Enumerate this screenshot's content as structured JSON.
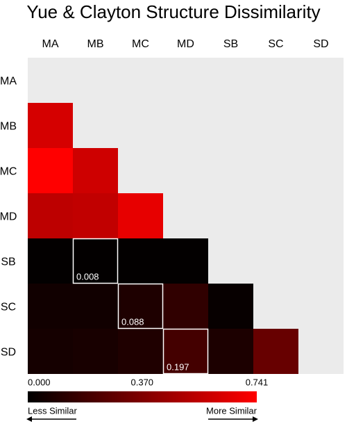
{
  "chart_data": {
    "type": "heatmap",
    "title": "Yue & Clayton Structure Dissimilarity",
    "columns": [
      "MA",
      "MB",
      "MC",
      "MD",
      "SB",
      "SC",
      "SD"
    ],
    "rows": [
      "MA",
      "MB",
      "MC",
      "MD",
      "SB",
      "SC",
      "SD"
    ],
    "values": [
      [
        null,
        null,
        null,
        null,
        null,
        null,
        null
      ],
      [
        0.62,
        null,
        null,
        null,
        null,
        null,
        null
      ],
      [
        0.741,
        0.6,
        null,
        null,
        null,
        null,
        null
      ],
      [
        0.55,
        0.56,
        0.67,
        null,
        null,
        null,
        null
      ],
      [
        0.01,
        0.008,
        0.01,
        0.01,
        null,
        null,
        null
      ],
      [
        0.05,
        0.05,
        0.088,
        0.14,
        0.02,
        null,
        null
      ],
      [
        0.06,
        0.07,
        0.09,
        0.197,
        0.08,
        0.3,
        null
      ]
    ],
    "value_labels": [
      [
        null,
        null,
        null,
        null,
        null,
        null,
        null
      ],
      [
        null,
        null,
        null,
        null,
        null,
        null,
        null
      ],
      [
        null,
        null,
        null,
        null,
        null,
        null,
        null
      ],
      [
        null,
        null,
        null,
        null,
        null,
        null,
        null
      ],
      [
        null,
        "0.008",
        null,
        null,
        null,
        null,
        null
      ],
      [
        null,
        null,
        "0.088",
        null,
        null,
        null,
        null
      ],
      [
        null,
        null,
        null,
        "0.197",
        null,
        null,
        null
      ]
    ],
    "clim": [
      0,
      0.741
    ],
    "cticks": [
      {
        "value": 0,
        "label": "0.000"
      },
      {
        "value": 0.37,
        "label": "0.370"
      },
      0.741
    ],
    "low_color": "#000000",
    "high_color": "#ff0000",
    "legend_low": "Less Similar",
    "legend_high": "More Similar"
  }
}
